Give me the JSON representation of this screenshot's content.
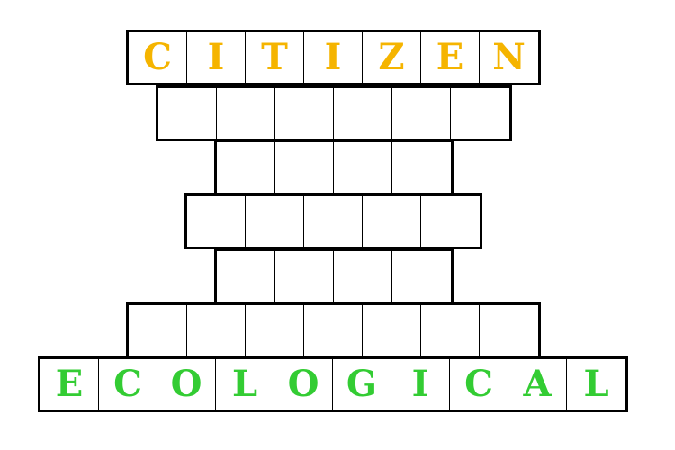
{
  "puzzle": {
    "start_word": [
      "C",
      "I",
      "T",
      "I",
      "Z",
      "E",
      "N"
    ],
    "rows": [
      [
        "",
        "",
        "",
        "",
        "",
        ""
      ],
      [
        "",
        "",
        "",
        ""
      ],
      [
        "",
        "",
        "",
        "",
        ""
      ],
      [
        "",
        "",
        "",
        ""
      ],
      [
        "",
        "",
        "",
        "",
        "",
        "",
        ""
      ]
    ],
    "end_word": [
      "E",
      "C",
      "O",
      "L",
      "O",
      "G",
      "I",
      "C",
      "A",
      "L"
    ],
    "colors": {
      "start_word": "#f5b400",
      "end_word": "#33cc33",
      "grid": "#000000"
    }
  }
}
